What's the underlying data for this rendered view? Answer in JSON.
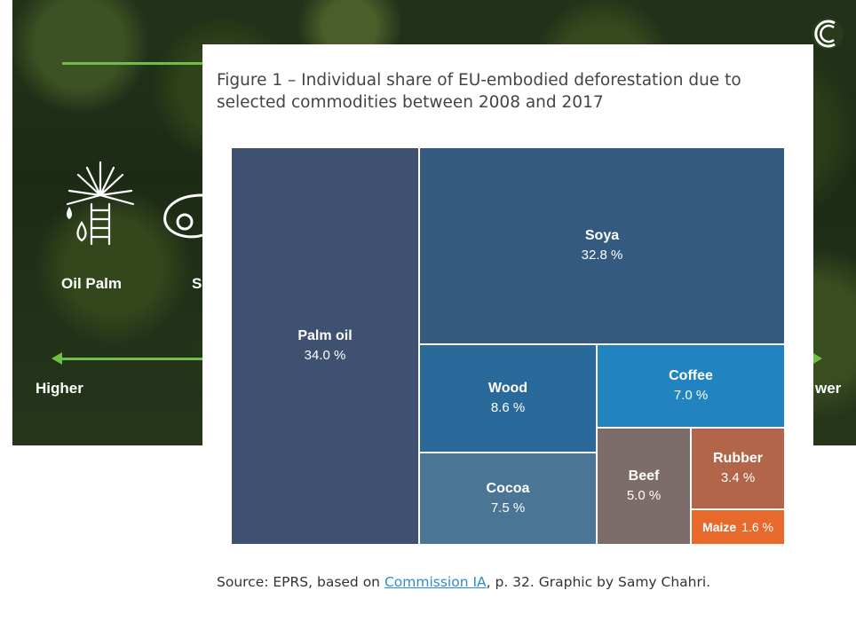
{
  "banner": {
    "label_oil_palm": "Oil Palm",
    "label_partial": "S",
    "label_higher": "Higher",
    "label_lower_partial": "wer"
  },
  "figure": {
    "title": "Figure 1 – Individual share of EU-embodied deforestation due to selected commodities between 2008 and 2017",
    "source_prefix": "Source: EPRS, based on ",
    "source_link": "Commission IA",
    "source_suffix": ", p. 32. Graphic by Samy Chahri."
  },
  "chart_data": {
    "type": "treemap",
    "unit": "%",
    "items": [
      {
        "name": "Palm oil",
        "value": 34.0,
        "label": "34.0 %",
        "color": "#3f5170"
      },
      {
        "name": "Soya",
        "value": 32.8,
        "label": "32.8 %",
        "color": "#345a80"
      },
      {
        "name": "Wood",
        "value": 8.6,
        "label": "8.6 %",
        "color": "#2a6a9a"
      },
      {
        "name": "Coffee",
        "value": 7.0,
        "label": "7.0 %",
        "color": "#2184c0"
      },
      {
        "name": "Cocoa",
        "value": 7.5,
        "label": "7.5 %",
        "color": "#4a7595"
      },
      {
        "name": "Beef",
        "value": 5.0,
        "label": "5.0 %",
        "color": "#7d6d6a"
      },
      {
        "name": "Rubber",
        "value": 3.4,
        "label": "3.4 %",
        "color": "#b3654a"
      },
      {
        "name": "Maize",
        "value": 1.6,
        "label": "1.6 %",
        "color": "#e8692c"
      }
    ]
  }
}
